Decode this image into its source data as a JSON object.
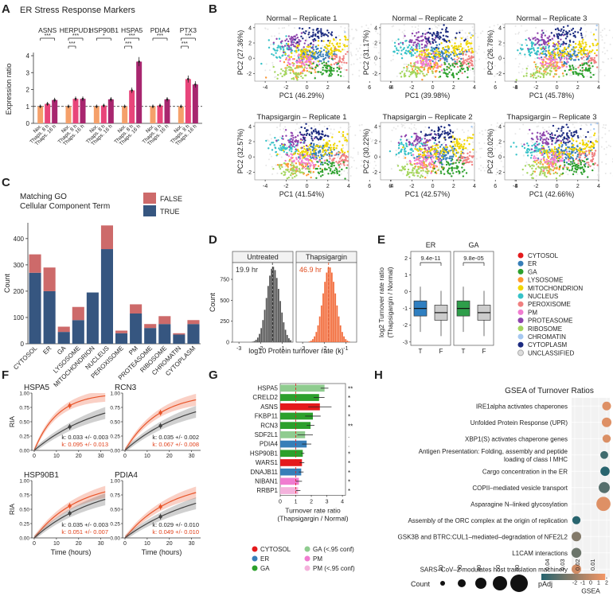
{
  "panels": {
    "A": {
      "letter": "A",
      "title": "ER Stress Response Markers",
      "ylabel": "Expression ratio",
      "ylim": [
        0,
        4
      ],
      "yticks": [
        "0",
        "1",
        "2",
        "3",
        "4"
      ],
      "conditions": [
        "Nor.",
        "Thaps. 8 h",
        "Thaps. 16 h"
      ],
      "colors": [
        "#f5a06a",
        "#e8457a",
        "#a8266f"
      ],
      "genes": [
        {
          "name": "ASNS",
          "values": [
            1.0,
            1.15,
            1.38
          ],
          "sig": [
            "***"
          ]
        },
        {
          "name": "HERPUD1",
          "values": [
            1.0,
            1.45,
            1.45
          ],
          "sig": [
            "***",
            "***"
          ]
        },
        {
          "name": "HSP90B1",
          "values": [
            1.0,
            1.05,
            1.42
          ],
          "sig": [
            "*"
          ]
        },
        {
          "name": "HSPA5",
          "values": [
            1.0,
            1.95,
            3.65
          ],
          "sig": [
            "***",
            "***"
          ]
        },
        {
          "name": "PDIA4",
          "values": [
            1.0,
            1.05,
            1.42
          ],
          "sig": [
            "***"
          ]
        },
        {
          "name": "PTX3",
          "values": [
            1.0,
            2.62,
            2.3
          ],
          "sig": [
            "***",
            "***"
          ]
        }
      ]
    },
    "B": {
      "letter": "B",
      "plots": [
        {
          "title": "Normal – Replicate 1",
          "xlabel": "PC1 (46.29%)",
          "ylabel": "PC2 (27.36%)"
        },
        {
          "title": "Normal – Replicate 2",
          "xlabel": "PC1 (39.98%)",
          "ylabel": "PC2 (31.17%)"
        },
        {
          "title": "Normal – Replicate 3",
          "xlabel": "PC1 (45.78%)",
          "ylabel": "PC2 (26.78%)"
        },
        {
          "title": "Thapsigargin – Replicate 1",
          "xlabel": "PC1 (41.54%)",
          "ylabel": "PC2 (32.57%)"
        },
        {
          "title": "Thapsigargin – Replicate 2",
          "xlabel": "PC1 (42.57%)",
          "ylabel": "PC2 (30.22%)"
        },
        {
          "title": "Thapsigargin – Replicate 3",
          "xlabel": "PC1 (42.66%)",
          "ylabel": "PC2 (30.02%)"
        }
      ],
      "xticks": [
        "-4",
        "-2",
        "0",
        "2",
        "4",
        "6",
        "8"
      ],
      "yticks": [
        "-2",
        "0",
        "2",
        "4"
      ]
    },
    "C": {
      "letter": "C",
      "legend_title": "Matching GO\nCellular Component Term",
      "legend": [
        {
          "name": "FALSE",
          "color": "#cd6a6a"
        },
        {
          "name": "TRUE",
          "color": "#365680"
        }
      ],
      "ylabel": "Count",
      "yticks": [
        "0",
        "100",
        "200",
        "300",
        "400"
      ],
      "categories": [
        "CYTOSOL",
        "ER",
        "GA",
        "LYSOSOME",
        "MITOCHONDRION",
        "NUCLEUS",
        "PEROXISOME",
        "PM",
        "PROTEASOME",
        "RIBOSOME",
        "CHROMATIN",
        "CYTOPLASM"
      ],
      "true_values": [
        270,
        200,
        45,
        90,
        195,
        360,
        40,
        115,
        60,
        75,
        35,
        75
      ],
      "false_values": [
        70,
        90,
        20,
        50,
        0,
        90,
        10,
        35,
        15,
        30,
        5,
        15
      ]
    },
    "D": {
      "letter": "D",
      "xlabel": "log10 Protein turnover rate (k)",
      "ylabel": "Count",
      "yticks": [
        "0",
        "250",
        "500",
        "750"
      ],
      "xticks": [
        "-3",
        "-2",
        "-1"
      ],
      "facets": [
        {
          "title": "Untreated",
          "median_label": "19.9 hr",
          "color": "#555555",
          "center": -1.45
        },
        {
          "title": "Thapsigargin",
          "median_label": "46.9 hr",
          "color": "#f26b3a",
          "center": -1.8
        }
      ]
    },
    "E": {
      "letter": "E",
      "ylabel": "log2 Turnover rate ratio\n(Thapsigargin / Normal)",
      "yticks": [
        "-3",
        "-2",
        "-1",
        "0",
        "1",
        "2"
      ],
      "facets": [
        {
          "title": "ER",
          "pvalue": "9.4e-11",
          "color": "#2f7fc1"
        },
        {
          "title": "GA",
          "pvalue": "9.8e-05",
          "color": "#2e9e4a"
        }
      ],
      "xcats": [
        "T",
        "F"
      ],
      "legend": [
        {
          "name": "CYTOSOL",
          "color": "#e41a1c"
        },
        {
          "name": "ER",
          "color": "#377eb8"
        },
        {
          "name": "GA",
          "color": "#2ca02c"
        },
        {
          "name": "LYSOSOME",
          "color": "#ff9933"
        },
        {
          "name": "MITOCHONDRION",
          "color": "#f1d600"
        },
        {
          "name": "NUCLEUS",
          "color": "#37c2c8"
        },
        {
          "name": "PEROXISOME",
          "color": "#f08080"
        },
        {
          "name": "PM",
          "color": "#f07cd0"
        },
        {
          "name": "PROTEASOME",
          "color": "#8e44ad"
        },
        {
          "name": "RIBOSOME",
          "color": "#a4d65e"
        },
        {
          "name": "CHROMATIN",
          "color": "#a6c8f0"
        },
        {
          "name": "CYTOPLASM",
          "color": "#1b2a80"
        },
        {
          "name": "UNCLASSIFIED",
          "color": "#dddddd"
        }
      ]
    },
    "F": {
      "letter": "F",
      "xlabel": "Time (hours)",
      "ylabel": "RIA",
      "xticks": [
        "0",
        "10",
        "20",
        "30"
      ],
      "yticks": [
        "0.00",
        "0.25",
        "0.50",
        "0.75",
        "1.00"
      ],
      "plots": [
        {
          "gene": "HSPA5",
          "k_normal": "k: 0.033 +/- 0.003",
          "k_thaps": "k: 0.095 +/- 0.013",
          "kn": 0.033,
          "kt": 0.095
        },
        {
          "gene": "RCN3",
          "k_normal": "k: 0.035 +/- 0.002",
          "k_thaps": "k: 0.067 +/- 0.008",
          "kn": 0.035,
          "kt": 0.067
        },
        {
          "gene": "HSP90B1",
          "k_normal": "k: 0.035 +/- 0.003",
          "k_thaps": "k: 0.051 +/- 0.007",
          "kn": 0.035,
          "kt": 0.051
        },
        {
          "gene": "PDIA4",
          "k_normal": "k: 0.029 +/- 0.010",
          "k_thaps": "k: 0.049 +/- 0.010",
          "kn": 0.029,
          "kt": 0.049
        }
      ]
    },
    "G": {
      "letter": "G",
      "xlabel": "Turnover rate ratio\n(Thapsigargin / Normal)",
      "xticks": [
        "0",
        "1",
        "2",
        "3",
        "4"
      ],
      "rows": [
        {
          "gene": "HSPA5",
          "value": 2.85,
          "err": 0.25,
          "color": "#8fcc8f",
          "sig": "**"
        },
        {
          "gene": "CRELD2",
          "value": 2.5,
          "err": 0.35,
          "color": "#2ca02c",
          "sig": "*"
        },
        {
          "gene": "ASNS",
          "value": 2.55,
          "err": 0.75,
          "color": "#e41a1c",
          "sig": "*"
        },
        {
          "gene": "FKBP11",
          "value": 2.1,
          "err": 0.5,
          "color": "#2ca02c",
          "sig": "*"
        },
        {
          "gene": "RCN3",
          "value": 1.95,
          "err": 0.25,
          "color": "#2ca02c",
          "sig": "**"
        },
        {
          "gene": "SDF2L1",
          "value": 1.6,
          "err": 0.5,
          "color": "#8fcc8f",
          "sig": "."
        },
        {
          "gene": "PDIA4",
          "value": 1.7,
          "err": 0.3,
          "color": "#377eb8",
          "sig": "."
        },
        {
          "gene": "HSP90B1",
          "value": 1.45,
          "err": 0.1,
          "color": "#2ca02c",
          "sig": "*"
        },
        {
          "gene": "WARS1",
          "value": 1.4,
          "err": 0.15,
          "color": "#e41a1c",
          "sig": "*"
        },
        {
          "gene": "DNAJB11",
          "value": 1.35,
          "err": 0.15,
          "color": "#377eb8",
          "sig": "*"
        },
        {
          "gene": "NIBAN1",
          "value": 1.2,
          "err": 0.2,
          "color": "#f07cd0",
          "sig": "*"
        },
        {
          "gene": "RRBP1",
          "value": 1.15,
          "err": 0.15,
          "color": "#f4b2dc",
          "sig": "*"
        }
      ],
      "legend": [
        {
          "name": "CYTOSOL",
          "color": "#e41a1c"
        },
        {
          "name": "GA (<.95 conf)",
          "color": "#8fcc8f"
        },
        {
          "name": "ER",
          "color": "#377eb8"
        },
        {
          "name": "PM",
          "color": "#f07cd0"
        },
        {
          "name": "GA",
          "color": "#2ca02c"
        },
        {
          "name": "PM (<.95 conf)",
          "color": "#f4b2dc"
        }
      ]
    },
    "H": {
      "letter": "H",
      "title": "GSEA of Turnover Ratios",
      "xlabel": "GSEA\nNES",
      "xticks": [
        "-2",
        "-1",
        "0",
        "1",
        "2"
      ],
      "pathways": [
        {
          "name": "IRE1alpha activates chaperones",
          "nes": 2.0,
          "padj": 0.005,
          "size": 25
        },
        {
          "name": "Unfolded Protein Response (UPR)",
          "nes": 2.0,
          "padj": 0.005,
          "size": 30
        },
        {
          "name": "XBP1(S) activates chaperone genes",
          "nes": 2.0,
          "padj": 0.006,
          "size": 22
        },
        {
          "name": "Antigen Presentation: Folding, assembly and peptide\nloading of class I MHC",
          "nes": 1.7,
          "padj": 0.04,
          "size": 20
        },
        {
          "name": "Cargo concentration in the ER",
          "nes": 1.8,
          "padj": 0.045,
          "size": 28
        },
        {
          "name": "COPII–mediated vesicle transport",
          "nes": 1.7,
          "padj": 0.035,
          "size": 40
        },
        {
          "name": "Asparagine N–linked glycosylation",
          "nes": 1.6,
          "padj": 0.005,
          "size": 65
        },
        {
          "name": "Assembly of the ORC complex at the origin of replication",
          "nes": -1.8,
          "padj": 0.045,
          "size": 22
        },
        {
          "name": "GSK3B and BTRC:CUL1–mediated–degradation of NFE2L2",
          "nes": -1.8,
          "padj": 0.025,
          "size": 30
        },
        {
          "name": "L1CAM interactions",
          "nes": -1.8,
          "padj": 0.03,
          "size": 32
        },
        {
          "name": "SARS–CoV–2 modulates host translation machinery",
          "nes": -1.8,
          "padj": 0.008,
          "size": 30
        }
      ],
      "count_legend": {
        "title": "Count",
        "values": [
          "20",
          "30",
          "40",
          "50",
          "60"
        ]
      },
      "padj_legend": {
        "title": "pAdj",
        "ticks": [
          "0.04",
          "0.03",
          "0.02",
          "0.01"
        ]
      }
    }
  }
}
